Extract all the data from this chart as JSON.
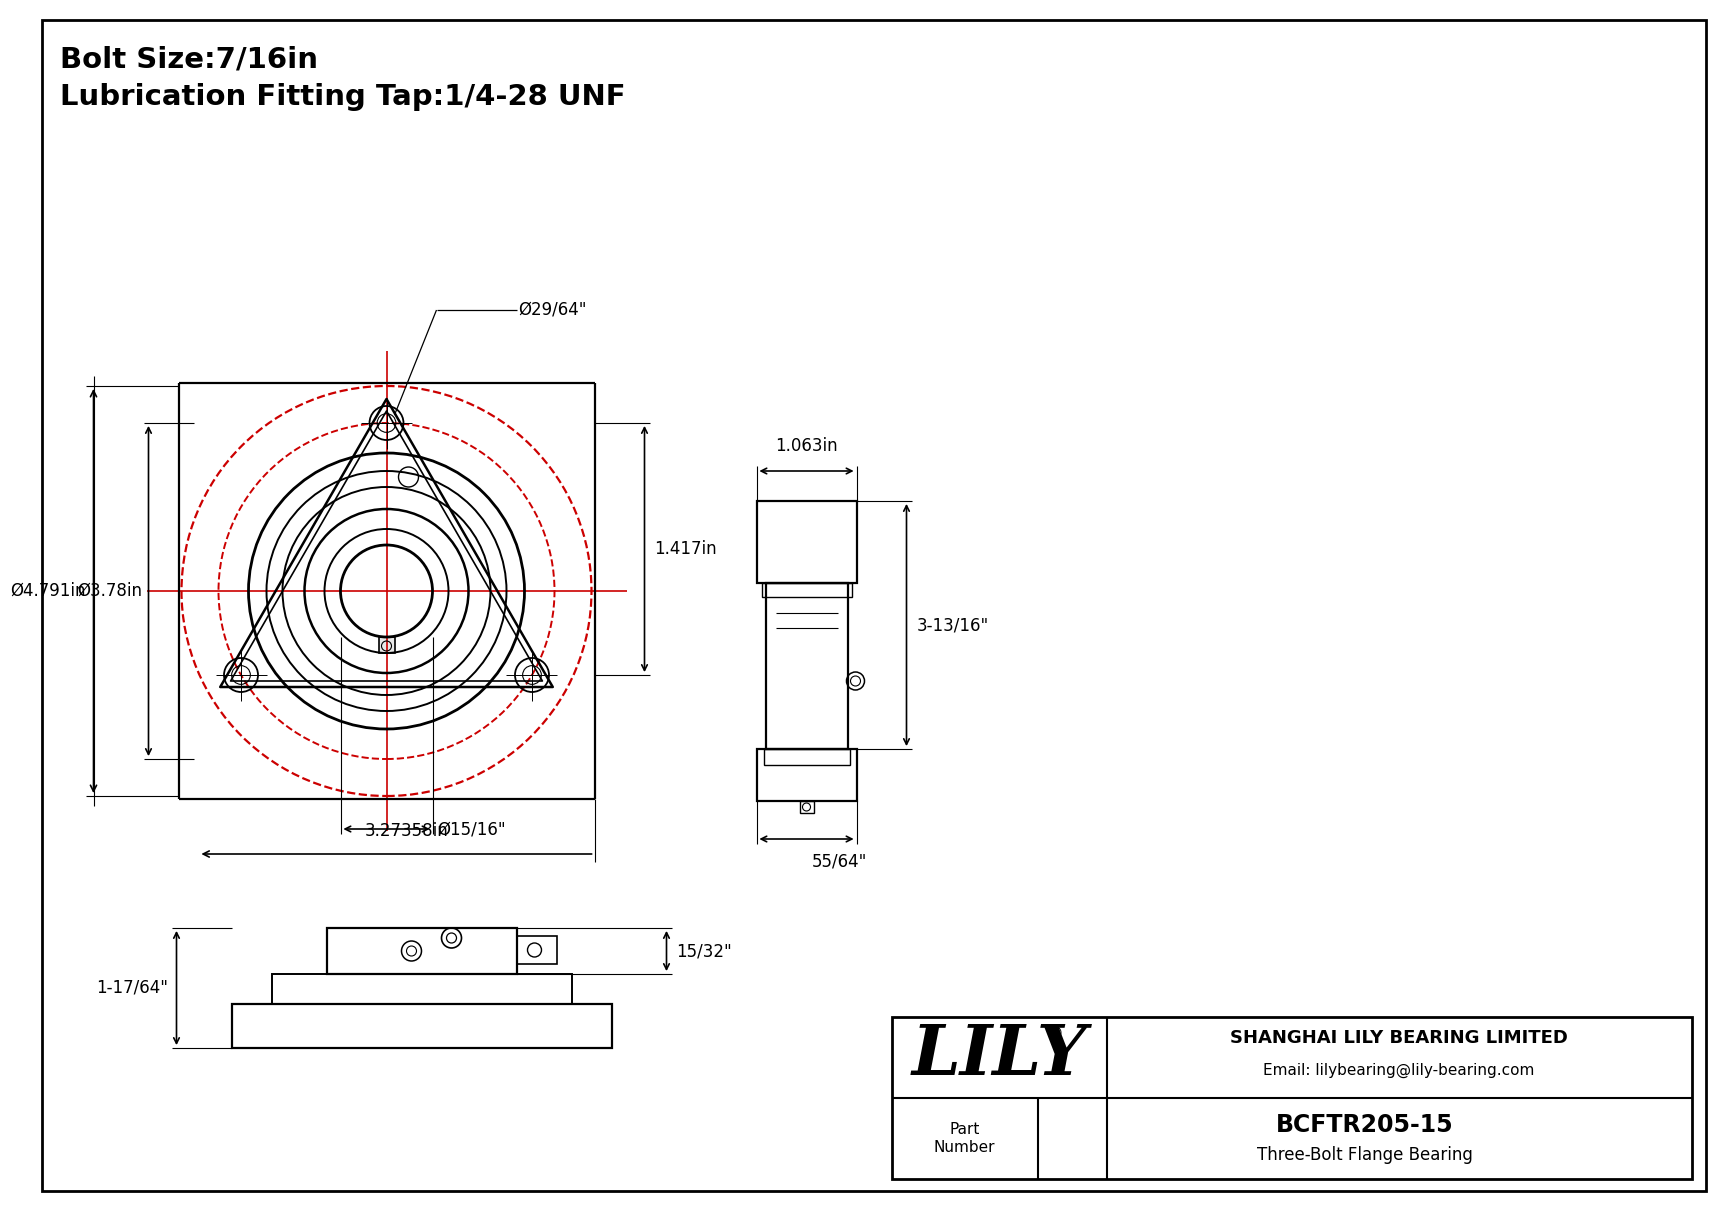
{
  "bg_color": "#ffffff",
  "line_color": "#000000",
  "red_color": "#cc0000",
  "gray_color": "#666666",
  "title_line1": "Bolt Size:7/16in",
  "title_line2": "Lubrication Fitting Tap:1/4-28 UNF",
  "company": "SHANGHAI LILY BEARING LIMITED",
  "email": "Email: lilybearing@lily-bearing.com",
  "part_number": "BCFTR205-15",
  "part_desc": "Three-Bolt Flange Bearing",
  "part_label": "Part\nNumber",
  "lily_logo": "LILY",
  "dim_bolt_circle": "Ø29/64\"",
  "dim_outer_d": "Ø4.791in",
  "dim_inner_d": "Ø3.78in",
  "dim_bore": "Ø15/16\"",
  "dim_width": "3.27358in",
  "dim_height": "1.417in",
  "dim_side_top": "1.063in",
  "dim_side_height": "3-13/16\"",
  "dim_side_bot": "55/64\"",
  "dim_front_height": "15/32\"",
  "dim_front_width": "1-17/64\""
}
